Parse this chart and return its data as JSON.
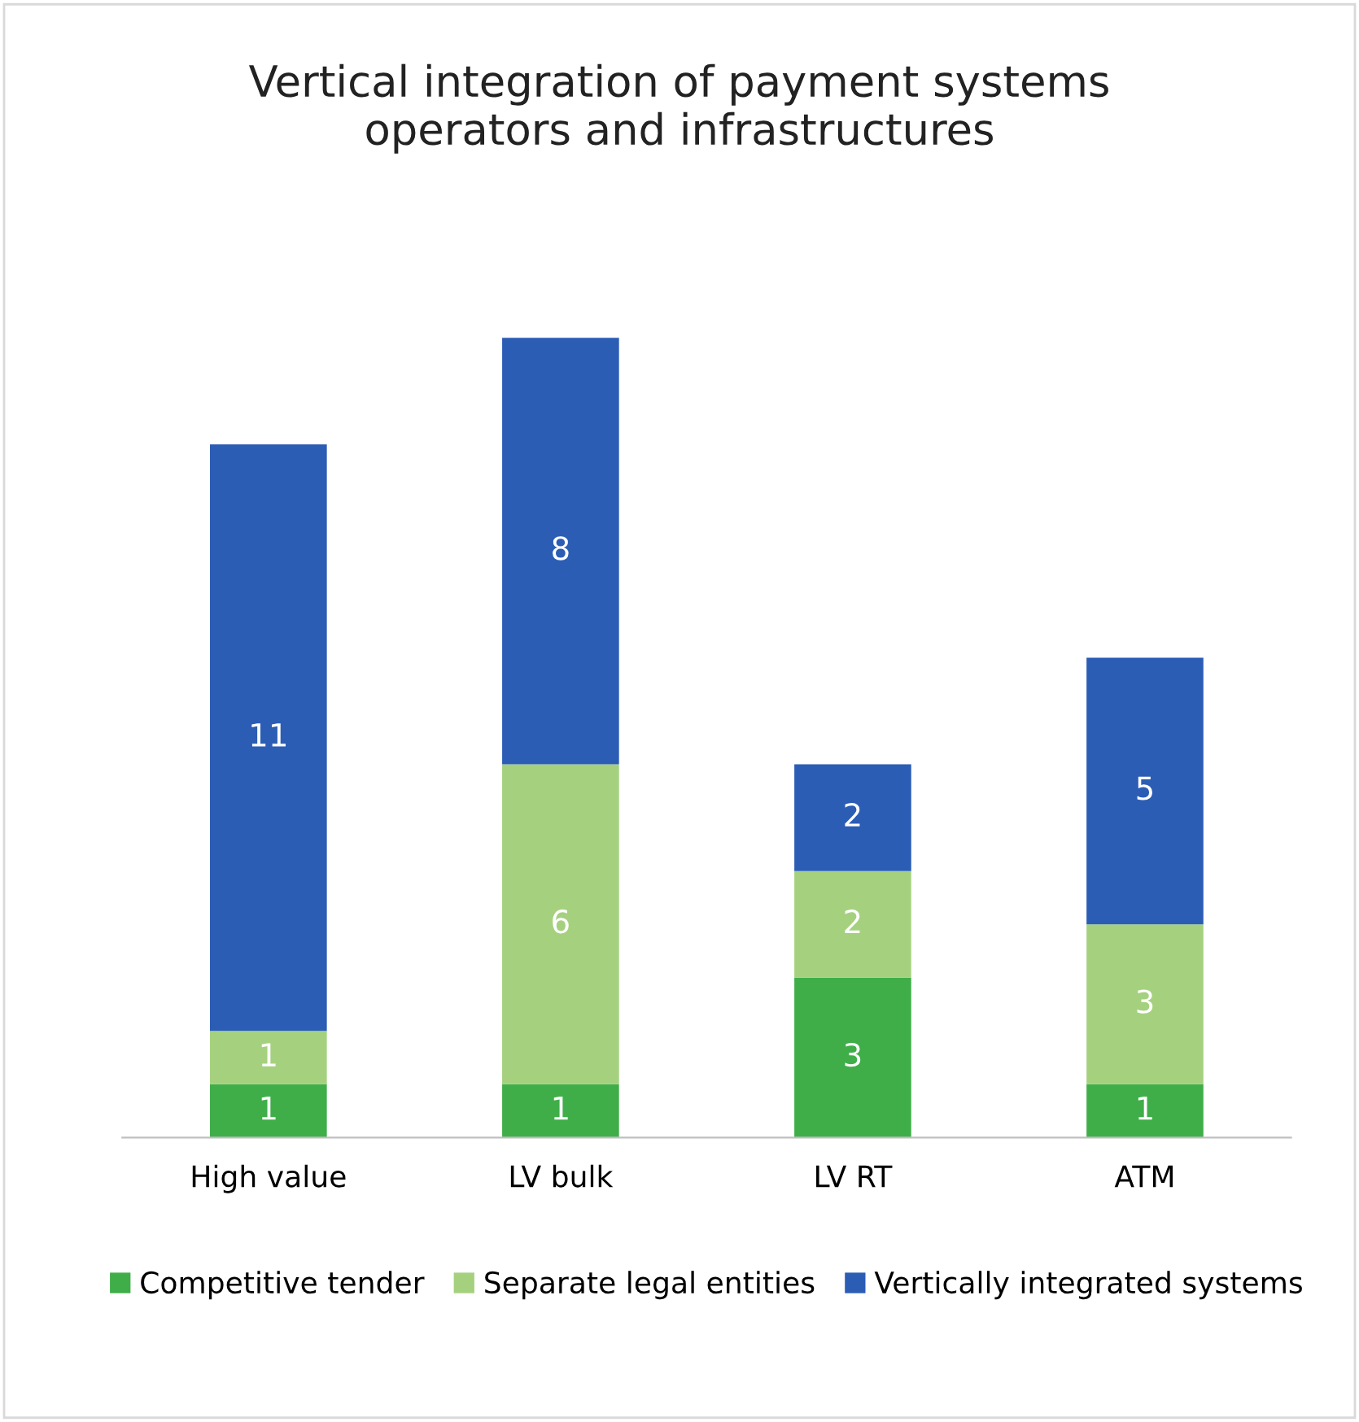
{
  "chart_data": {
    "type": "bar",
    "stacked": true,
    "title": "Vertical integration of payment systems\noperators and infrastructures",
    "categories": [
      "High value",
      "LV bulk",
      "LV RT",
      "ATM"
    ],
    "series": [
      {
        "name": "Competitive tender",
        "color": "#3fae49",
        "values": [
          1,
          1,
          3,
          1
        ]
      },
      {
        "name": "Separate legal entities",
        "color": "#a5d17f",
        "values": [
          1,
          6,
          2,
          3
        ]
      },
      {
        "name": "Vertically integrated systems",
        "color": "#2b5db5",
        "values": [
          11,
          8,
          2,
          5
        ]
      }
    ],
    "data_labels": true,
    "legend": "bottom",
    "grid": false
  }
}
